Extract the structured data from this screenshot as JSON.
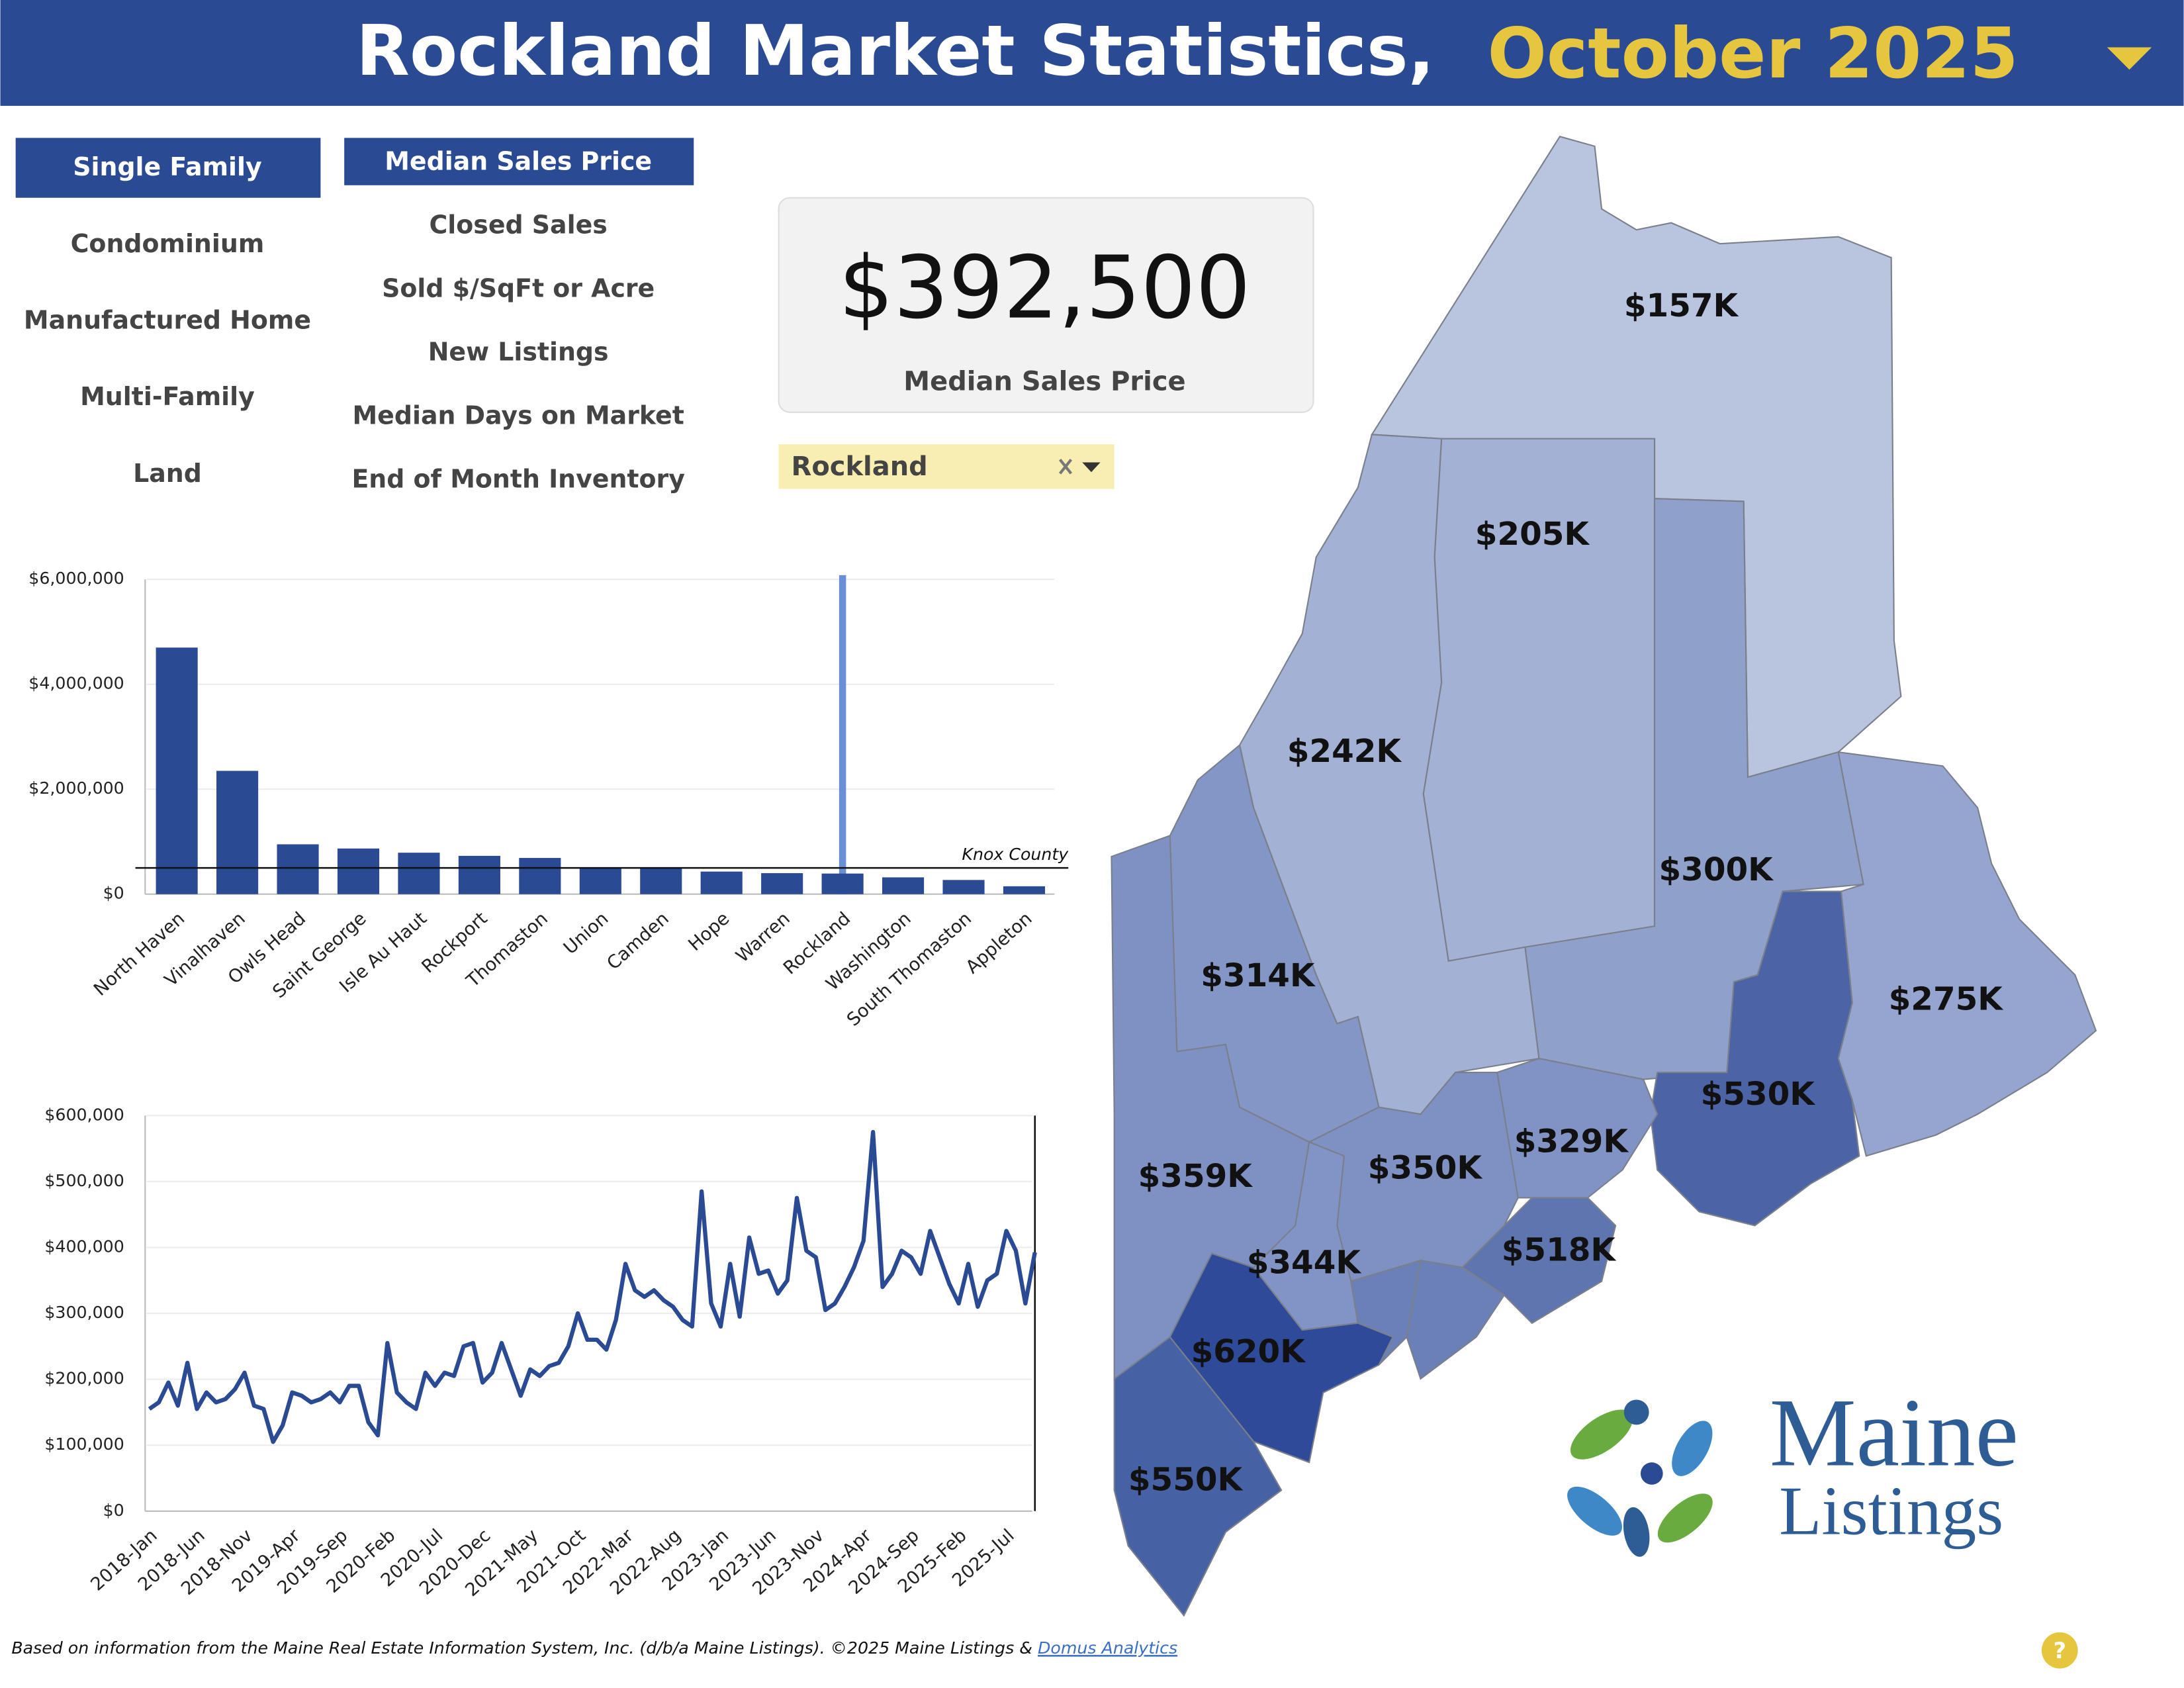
{
  "header": {
    "title": "Rockland Market Statistics,",
    "period": "October 2025"
  },
  "property_types": [
    {
      "label": "Single Family",
      "selected": true
    },
    {
      "label": "Condominium",
      "selected": false
    },
    {
      "label": "Manufactured Home",
      "selected": false
    },
    {
      "label": "Multi-Family",
      "selected": false
    },
    {
      "label": "Land",
      "selected": false
    }
  ],
  "metrics": [
    {
      "label": "Median Sales Price",
      "selected": true
    },
    {
      "label": "Closed Sales",
      "selected": false
    },
    {
      "label": "Sold $/SqFt or Acre",
      "selected": false
    },
    {
      "label": "New Listings",
      "selected": false
    },
    {
      "label": "Median Days on Market",
      "selected": false
    },
    {
      "label": "End of Month Inventory",
      "selected": false
    }
  ],
  "kpi": {
    "value": "$392,500",
    "label": "Median Sales Price"
  },
  "filter": {
    "value": "Rockland"
  },
  "chart_data": [
    {
      "type": "bar",
      "color": "#2b4a94",
      "categories": [
        "North Haven",
        "Vinalhaven",
        "Owls Head",
        "Saint George",
        "Isle Au Haut",
        "Rockport",
        "Thomaston",
        "Union",
        "Camden",
        "Hope",
        "Warren",
        "Rockland",
        "Washington",
        "South Thomaston",
        "Appleton"
      ],
      "values": [
        4700000,
        2350000,
        950000,
        870000,
        790000,
        730000,
        690000,
        510000,
        510000,
        430000,
        400000,
        392500,
        320000,
        270000,
        150000
      ],
      "ylim": [
        0,
        6000000
      ],
      "yticks": [
        {
          "value": 0,
          "label": "$0"
        },
        {
          "value": 2000000,
          "label": "$2,000,000"
        },
        {
          "value": 4000000,
          "label": "$4,000,000"
        },
        {
          "value": 6000000,
          "label": "$6,000,000"
        }
      ],
      "grid": true,
      "reference_lines": [
        {
          "label": "Knox County",
          "value": 500000
        }
      ]
    },
    {
      "type": "line",
      "color": "#2b4a94",
      "categories": [
        "2018-Jan",
        null,
        null,
        null,
        null,
        "2018-Jun",
        null,
        null,
        null,
        null,
        "2018-Nov",
        null,
        null,
        null,
        null,
        "2019-Apr",
        null,
        null,
        null,
        null,
        "2019-Sep",
        null,
        null,
        null,
        null,
        "2020-Feb",
        null,
        null,
        null,
        null,
        "2020-Jul",
        null,
        null,
        null,
        null,
        "2020-Dec",
        null,
        null,
        null,
        null,
        "2021-May",
        null,
        null,
        null,
        null,
        "2021-Oct",
        null,
        null,
        null,
        null,
        "2022-Mar",
        null,
        null,
        null,
        null,
        "2022-Aug",
        null,
        null,
        null,
        null,
        "2023-Jan",
        null,
        null,
        null,
        null,
        "2023-Jun",
        null,
        null,
        null,
        null,
        "2023-Nov",
        null,
        null,
        null,
        null,
        "2024-Apr",
        null,
        null,
        null,
        null,
        "2024-Sep",
        null,
        null,
        null,
        null,
        "2025-Feb",
        null,
        null,
        null,
        null,
        "2025-Jul",
        null,
        null,
        null
      ],
      "values": [
        155000,
        165000,
        195000,
        160000,
        225000,
        155000,
        180000,
        165000,
        170000,
        185000,
        210000,
        160000,
        155000,
        105000,
        130000,
        180000,
        175000,
        165000,
        170000,
        180000,
        165000,
        190000,
        190000,
        135000,
        115000,
        255000,
        180000,
        165000,
        155000,
        210000,
        190000,
        210000,
        205000,
        250000,
        255000,
        195000,
        210000,
        255000,
        215000,
        175000,
        215000,
        205000,
        220000,
        225000,
        250000,
        300000,
        260000,
        260000,
        245000,
        290000,
        375000,
        335000,
        325000,
        335000,
        320000,
        310000,
        290000,
        280000,
        485000,
        315000,
        280000,
        375000,
        295000,
        415000,
        360000,
        365000,
        330000,
        350000,
        475000,
        395000,
        385000,
        305000,
        315000,
        340000,
        370000,
        410000,
        575000,
        340000,
        360000,
        395000,
        385000,
        360000,
        425000,
        385000,
        345000,
        315000,
        375000,
        310000,
        350000,
        360000,
        425000,
        395000,
        315000,
        392500
      ],
      "ylim": [
        0,
        600000
      ],
      "yticks": [
        {
          "value": 0,
          "label": "$0"
        },
        {
          "value": 100000,
          "label": "$100,000"
        },
        {
          "value": 200000,
          "label": "$200,000"
        },
        {
          "value": 300000,
          "label": "$300,000"
        },
        {
          "value": 400000,
          "label": "$400,000"
        },
        {
          "value": 500000,
          "label": "$500,000"
        },
        {
          "value": 600000,
          "label": "$600,000"
        }
      ],
      "grid": true
    }
  ],
  "map": {
    "labels": [
      "$157K",
      "$205K",
      "$242K",
      "$300K",
      "$314K",
      "$275K",
      "$530K",
      "$329K",
      "$350K",
      "$359K",
      "$518K",
      "$344K",
      "$620K",
      "$550K"
    ]
  },
  "logo": {
    "line1": "Maine",
    "line2": "Listings"
  },
  "footer": {
    "text": "Based on information from the Maine Real Estate Information System, Inc. (d/b/a Maine Listings).  ©2025 Maine Listings & ",
    "link": "Domus Analytics"
  },
  "help": "?"
}
